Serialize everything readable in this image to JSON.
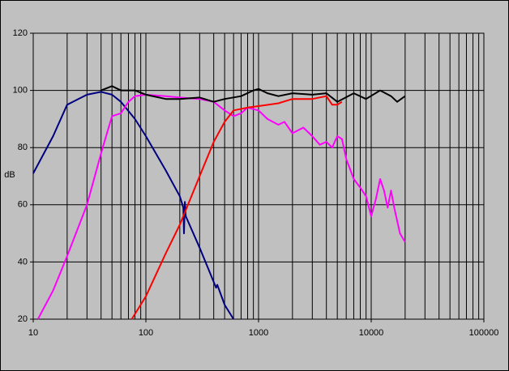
{
  "chart_data": {
    "type": "line",
    "ylabel": "dB",
    "xlog": true,
    "grid": true,
    "minor_grid": true,
    "xlim": [
      10,
      100000
    ],
    "xticks": [
      10,
      100,
      1000,
      10000,
      100000
    ],
    "ylim": [
      20,
      120
    ],
    "yticks": [
      20,
      40,
      60,
      80,
      100,
      120
    ],
    "series": [
      {
        "color": "#000080",
        "x": [
          10,
          15,
          20,
          30,
          40,
          50,
          60,
          80,
          100,
          150,
          200,
          215,
          218,
          222,
          226,
          300,
          400,
          420,
          430,
          500,
          600
        ],
        "values": [
          71,
          84,
          95,
          98.5,
          99.5,
          98.5,
          96,
          90,
          84,
          72,
          63,
          59,
          50,
          61,
          56,
          45,
          33,
          31,
          32,
          25,
          20
        ]
      },
      {
        "color": "#ff00ff",
        "x": [
          11,
          15,
          20,
          30,
          40,
          50,
          60,
          70,
          80,
          100,
          150,
          200,
          300,
          400,
          500,
          600,
          700,
          800,
          1000,
          1200,
          1500,
          1700,
          2000,
          2500,
          3000,
          3500,
          4000,
          4500,
          5000,
          5500,
          6000,
          7000,
          8000,
          9000,
          10000,
          11000,
          12000,
          13000,
          14000,
          15000,
          16000,
          18000,
          20000
        ],
        "values": [
          20,
          30,
          42,
          60,
          78,
          91,
          92,
          96,
          98,
          98.5,
          98,
          97.5,
          97,
          96,
          93,
          91,
          92,
          94,
          93,
          90,
          88,
          89,
          85,
          87,
          84,
          81,
          82,
          80,
          84,
          83,
          76,
          69,
          66,
          63,
          56,
          62,
          69,
          65,
          59,
          65,
          59,
          50,
          47
        ]
      },
      {
        "color": "#ff0000",
        "x": [
          75,
          100,
          150,
          200,
          300,
          400,
          500,
          600,
          800,
          1000,
          1500,
          2000,
          3000,
          4000,
          4500,
          5000,
          5500
        ],
        "values": [
          20,
          28,
          43,
          53,
          70,
          82,
          89,
          93,
          94,
          94.5,
          95.5,
          97,
          97,
          98,
          95,
          95,
          96
        ]
      },
      {
        "color": "#000000",
        "x": [
          40,
          50,
          60,
          80,
          100,
          150,
          200,
          300,
          400,
          500,
          700,
          900,
          1000,
          1200,
          1500,
          2000,
          3000,
          4000,
          5000,
          7000,
          9000,
          12000,
          15000,
          17000,
          20000
        ],
        "values": [
          100,
          101.5,
          100,
          100,
          98.5,
          97,
          97,
          97.5,
          96,
          97,
          98,
          100,
          100.5,
          99,
          98,
          99,
          98.5,
          99,
          96,
          99,
          97,
          100,
          98,
          96,
          98
        ]
      }
    ]
  }
}
